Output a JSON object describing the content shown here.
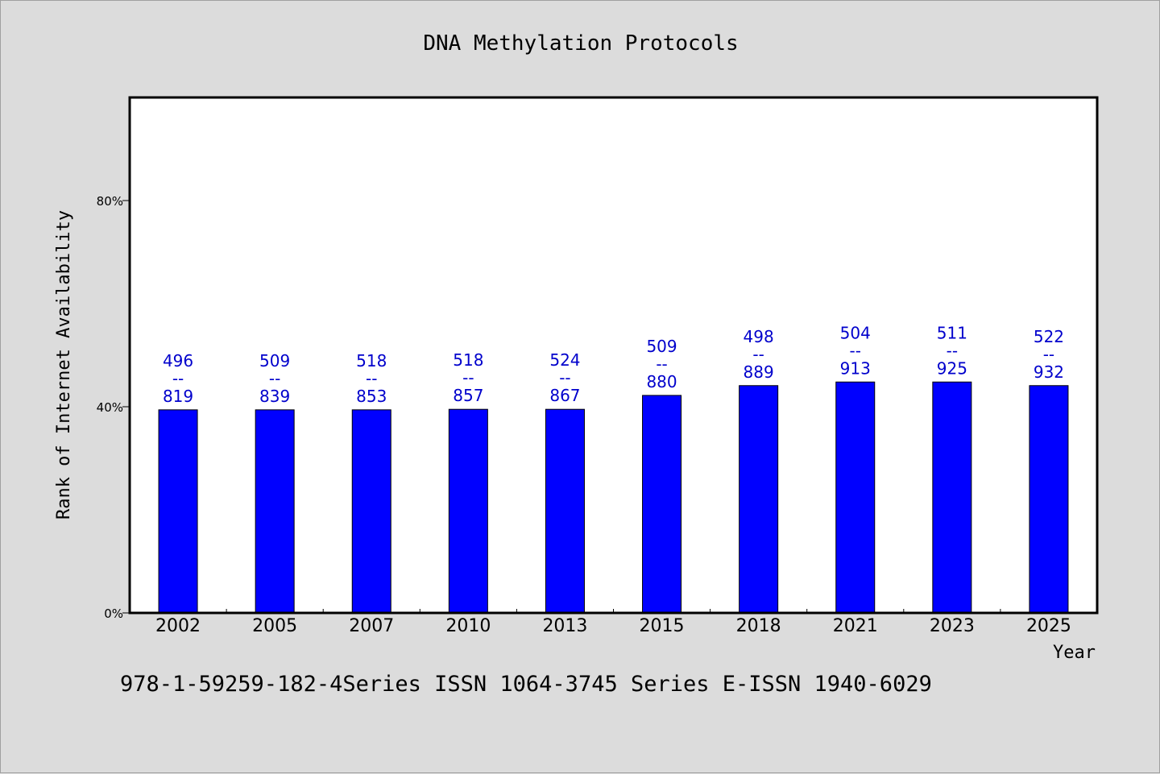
{
  "footer": {
    "note": "978-1-59259-182-4Series ISSN 1064-3745 Series E-ISSN 1940-6029"
  },
  "colors": {
    "background": "#dcdcdc",
    "plot_background": "#ffffff",
    "bar": "#0000ff",
    "label": "#0000cc",
    "axis": "#000000"
  },
  "chart_data": {
    "type": "bar",
    "title": "DNA Methylation Protocols",
    "xlabel": "Year",
    "ylabel": "Rank of Internet Availability",
    "ylim": [
      0,
      100
    ],
    "yticks": [
      0,
      40,
      80
    ],
    "ytick_labels": [
      "0%",
      "40%",
      "80%"
    ],
    "categories": [
      "2002",
      "2005",
      "2007",
      "2010",
      "2013",
      "2015",
      "2018",
      "2021",
      "2023",
      "2025"
    ],
    "values": [
      39.4,
      39.4,
      39.4,
      39.5,
      39.5,
      42.2,
      44.1,
      44.8,
      44.8,
      44.1
    ],
    "labels": [
      [
        "496",
        "--",
        "819"
      ],
      [
        "509",
        "--",
        "839"
      ],
      [
        "518",
        "--",
        "853"
      ],
      [
        "518",
        "--",
        "857"
      ],
      [
        "524",
        "--",
        "867"
      ],
      [
        "509",
        "--",
        "880"
      ],
      [
        "498",
        "--",
        "889"
      ],
      [
        "504",
        "--",
        "913"
      ],
      [
        "511",
        "--",
        "925"
      ],
      [
        "522",
        "--",
        "932"
      ]
    ],
    "grid": false,
    "legend": "none"
  }
}
